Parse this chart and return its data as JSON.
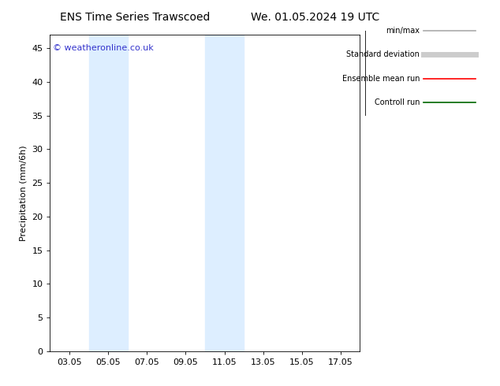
{
  "title_left": "ENS Time Series Trawscoed",
  "title_right": "We. 01.05.2024 19 UTC",
  "xlabel": "",
  "ylabel": "Precipitation (mm/6h)",
  "xlim": [
    2.0,
    18.0
  ],
  "ylim": [
    0,
    47
  ],
  "yticks": [
    0,
    5,
    10,
    15,
    20,
    25,
    30,
    35,
    40,
    45
  ],
  "xtick_labels": [
    "03.05",
    "05.05",
    "07.05",
    "09.05",
    "11.05",
    "13.05",
    "15.05",
    "17.05"
  ],
  "xtick_positions": [
    3,
    5,
    7,
    9,
    11,
    13,
    15,
    17
  ],
  "shaded_bands": [
    {
      "xmin": 4.0,
      "xmax": 5.0
    },
    {
      "xmin": 5.0,
      "xmax": 6.0
    },
    {
      "xmin": 10.0,
      "xmax": 11.0
    },
    {
      "xmin": 11.0,
      "xmax": 12.0
    }
  ],
  "shaded_color": "#ddeeff",
  "watermark": "© weatheronline.co.uk",
  "watermark_color": "#3333cc",
  "legend_items": [
    {
      "label": "min/max",
      "color": "#aaaaaa",
      "lw": 1.2,
      "style": "line"
    },
    {
      "label": "Standard deviation",
      "color": "#cccccc",
      "lw": 5,
      "style": "line"
    },
    {
      "label": "Ensemble mean run",
      "color": "#ff0000",
      "lw": 1.2,
      "style": "line"
    },
    {
      "label": "Controll run",
      "color": "#006600",
      "lw": 1.2,
      "style": "line"
    }
  ],
  "bg_color": "#ffffff",
  "plot_bg_color": "#ffffff",
  "grid_color": "#dddddd",
  "tick_color": "#000000",
  "title_fontsize": 10,
  "label_fontsize": 8,
  "tick_fontsize": 8,
  "watermark_fontsize": 8
}
